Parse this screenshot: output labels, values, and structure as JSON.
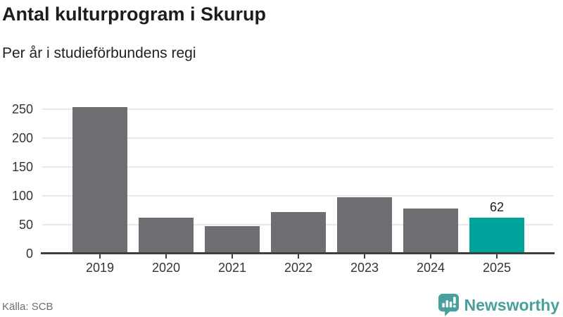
{
  "header": {
    "title": "Antal kulturprogram i Skurup",
    "subtitle": "Per år i studieförbundens regi"
  },
  "chart_data": {
    "type": "bar",
    "categories": [
      "2019",
      "2020",
      "2021",
      "2022",
      "2023",
      "2024",
      "2025"
    ],
    "values": [
      254,
      62,
      47,
      72,
      97,
      78,
      62
    ],
    "title": "Antal kulturprogram i Skurup",
    "subtitle": "Per år i studieförbundens regi",
    "xlabel": "",
    "ylabel": "",
    "ylim": [
      0,
      250
    ],
    "yticks": [
      0,
      50,
      100,
      150,
      200,
      250
    ],
    "grid": true,
    "legend": false,
    "highlight_index": 6,
    "value_labels": [
      {
        "index": 6,
        "text": "62"
      }
    ],
    "bar_color": "#6f6e73",
    "highlight_color": "#00a39b"
  },
  "footer": {
    "source": "Källa: SCB",
    "brand": "Newsworthy",
    "brand_color": "#47a09c",
    "logo_icon": "bar-chart-speech-bubble-icon"
  }
}
